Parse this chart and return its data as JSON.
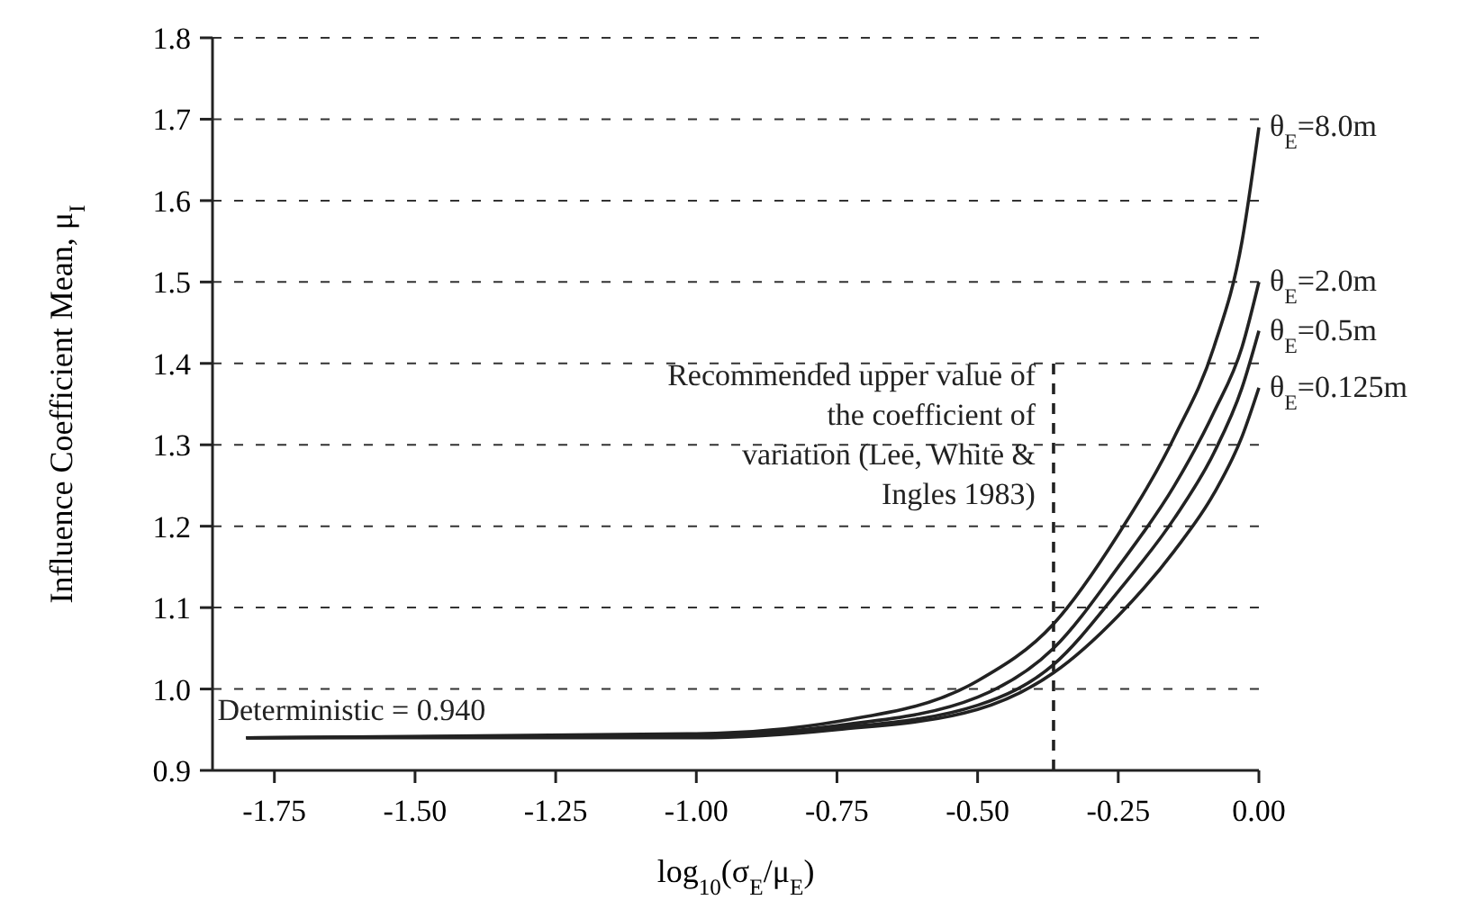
{
  "chart_data": {
    "type": "line",
    "xlabel": "log$_{10}$(σ$_{E}$/μ$_{E}$)",
    "ylabel": "Influence Coefficient Mean, μ$_{I}$",
    "xlim": [
      -1.86,
      0
    ],
    "xticks": [
      {
        "value": -1.75,
        "label": "-1.75"
      },
      {
        "value": -1.5,
        "label": "-1.50"
      },
      {
        "value": -1.25,
        "label": "-1.25"
      },
      {
        "value": -1,
        "label": "-1.00"
      },
      {
        "value": -0.75,
        "label": "-0.75"
      },
      {
        "value": -0.5,
        "label": "-0.50"
      },
      {
        "value": -0.25,
        "label": "-0.25"
      },
      {
        "value": 0,
        "label": "0.00"
      }
    ],
    "ylim": [
      0.9,
      1.8
    ],
    "yticks": [
      {
        "value": 0.9,
        "label": "0.9"
      },
      {
        "value": 1,
        "label": "1.0"
      },
      {
        "value": 1.1,
        "label": "1.1"
      },
      {
        "value": 1.2,
        "label": "1.2"
      },
      {
        "value": 1.3,
        "label": "1.3"
      },
      {
        "value": 1.4,
        "label": "1.4"
      },
      {
        "value": 1.5,
        "label": "1.5"
      },
      {
        "value": 1.6,
        "label": "1.6"
      },
      {
        "value": 1.7,
        "label": "1.7"
      },
      {
        "value": 1.8,
        "label": "1.8"
      }
    ],
    "grid": "y",
    "legend": false,
    "marker": "none",
    "line_style": "solid",
    "series": [
      {
        "name": "θ$_{E}$=8.0m",
        "color": "#222222",
        "x": [
          -1.8,
          -1,
          -0.75,
          -0.5,
          -0.365,
          -0.25,
          -0.15,
          -0.08,
          -0.03,
          0
        ],
        "values": [
          0.94,
          0.945,
          0.96,
          1.01,
          1.08,
          1.19,
          1.31,
          1.42,
          1.55,
          1.69
        ]
      },
      {
        "name": "θ$_{E}$=2.0m",
        "color": "#222222",
        "x": [
          -1.8,
          -1,
          -0.75,
          -0.5,
          -0.365,
          -0.25,
          -0.15,
          -0.08,
          -0.03,
          0
        ],
        "values": [
          0.94,
          0.943,
          0.955,
          0.99,
          1.05,
          1.15,
          1.25,
          1.34,
          1.42,
          1.5
        ]
      },
      {
        "name": "θ$_{E}$=0.5m",
        "color": "#222222",
        "x": [
          -1.8,
          -1,
          -0.75,
          -0.5,
          -0.365,
          -0.25,
          -0.15,
          -0.08,
          -0.03,
          0
        ],
        "values": [
          0.94,
          0.942,
          0.952,
          0.98,
          1.03,
          1.12,
          1.21,
          1.29,
          1.37,
          1.44
        ]
      },
      {
        "name": "θ$_{E}$=0.125m",
        "color": "#222222",
        "x": [
          -1.8,
          -1,
          -0.75,
          -0.5,
          -0.365,
          -0.25,
          -0.15,
          -0.08,
          -0.03,
          0
        ],
        "values": [
          0.94,
          0.94,
          0.95,
          0.975,
          1.02,
          1.09,
          1.17,
          1.24,
          1.31,
          1.37
        ]
      }
    ],
    "ref_lines": [
      {
        "axis": "x",
        "value": -0.365,
        "label": "Recommended upper value of the coefficient of variation (Lee, White & Ingles 1983)",
        "line_style": "dashed",
        "color": "#222222"
      }
    ],
    "annotations": [
      {
        "text": "Deterministic = 0.940",
        "x": -1.8,
        "y": 0.94
      }
    ]
  }
}
